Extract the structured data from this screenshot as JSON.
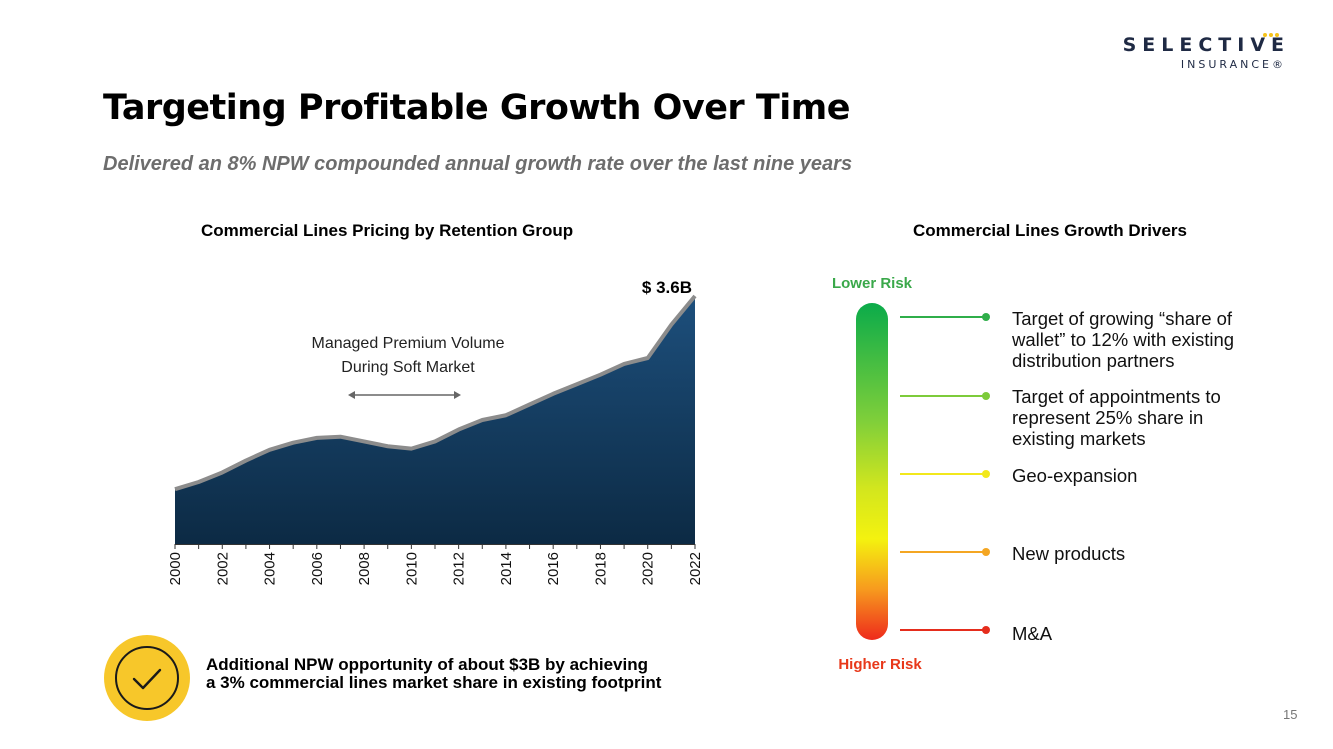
{
  "logo": {
    "name": "SELECTIVE",
    "sub": "INSURANCE®"
  },
  "title": "Targeting Profitable Growth Over Time",
  "subtitle": "Delivered an 8% NPW compounded annual growth rate over the last nine years",
  "left_section": {
    "title": "Commercial Lines Pricing by Retention Group"
  },
  "right_section": {
    "title": "Commercial Lines Growth Drivers"
  },
  "chart_data": {
    "type": "area",
    "title": "Commercial Lines Pricing by Retention Group",
    "x": [
      2000,
      2001,
      2002,
      2003,
      2004,
      2005,
      2006,
      2007,
      2008,
      2009,
      2010,
      2011,
      2012,
      2013,
      2014,
      2015,
      2016,
      2017,
      2018,
      2019,
      2020,
      2021,
      2022
    ],
    "values": [
      0.46,
      0.52,
      0.6,
      0.7,
      0.79,
      0.85,
      0.89,
      0.9,
      0.86,
      0.82,
      0.8,
      0.86,
      0.96,
      1.04,
      1.08,
      1.17,
      1.26,
      1.34,
      1.42,
      1.51,
      1.56,
      1.84,
      2.08
    ],
    "xticks": [
      "2000",
      "2002",
      "2004",
      "2006",
      "2008",
      "2010",
      "2012",
      "2014",
      "2016",
      "2018",
      "2020",
      "2022"
    ],
    "end_label": "$ 3.6B",
    "annotation": {
      "line1": "Managed Premium Volume",
      "line2": "During Soft Market",
      "from_year": 2007,
      "to_year": 2012
    },
    "grid": false,
    "colors": {
      "fill_top": "#1d4f7c",
      "fill_bottom": "#0c2a44",
      "outline": "#8c8c8c"
    }
  },
  "callout": {
    "icon": "check-circle-icon",
    "color": "#f7c72a",
    "line1": "Additional NPW opportunity of about $3B by achieving",
    "line2": "a 3% commercial lines market share in existing footprint"
  },
  "risk_scale": {
    "top_label": "Lower Risk",
    "bottom_label": "Higher Risk",
    "top_color": "#3aa84a",
    "bottom_color": "#e8381a",
    "drivers": [
      {
        "lines": [
          "Target of growing “share of",
          "wallet” to 12% with existing",
          "distribution partners"
        ],
        "color": "#2fae4a"
      },
      {
        "lines": [
          "Target of appointments to",
          "represent 25% share in",
          "existing markets"
        ],
        "color": "#7dcb3a"
      },
      {
        "lines": [
          "Geo-expansion"
        ],
        "color": "#f2e81c"
      },
      {
        "lines": [
          "New products"
        ],
        "color": "#f4a623"
      },
      {
        "lines": [
          "M&A"
        ],
        "color": "#e52d1d"
      }
    ]
  },
  "page_number": "15"
}
